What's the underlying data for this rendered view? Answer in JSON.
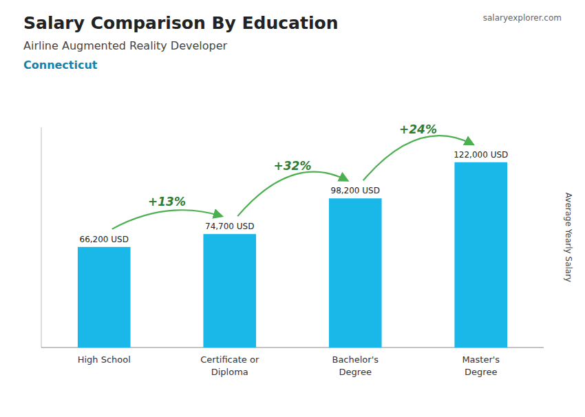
{
  "chart_data": {
    "type": "bar",
    "title": "Salary Comparison By Education",
    "subtitle": "Airline Augmented Reality Developer",
    "annotations": [
      "Connecticut",
      "salaryexplorer.com"
    ],
    "y_label": "Average Yearly Salary",
    "categories": [
      "High School",
      "Certificate or\nDiploma",
      "Bachelor's\nDegree",
      "Master's\nDegree"
    ],
    "values": [
      66200,
      74700,
      98200,
      122000
    ],
    "value_labels": [
      "66,200 USD",
      "74,700 USD",
      "98,200 USD",
      "122,000 USD"
    ],
    "data_labels": true,
    "change_labels": [
      "+13%",
      "+32%",
      "+24%"
    ],
    "color": "#1ab8e8",
    "ylim": [
      0,
      145000
    ],
    "yticks": [],
    "tick_labels": "x",
    "grid": false
  }
}
